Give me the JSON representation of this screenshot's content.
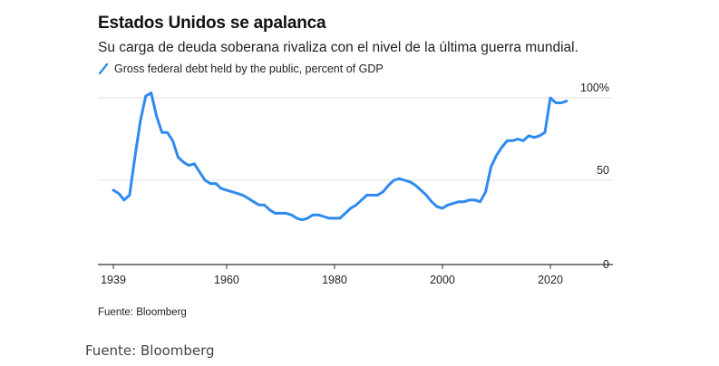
{
  "chart_data": {
    "type": "line",
    "title": "Estados Unidos se apalanca",
    "subtitle": "Su carga de deuda soberana rivaliza con el nivel de la última guerra mundial.",
    "series": [
      {
        "name": "Gross federal debt held by the public, percent of GDP",
        "color": "#2f8af0",
        "x": [
          1939,
          1940,
          1941,
          1942,
          1943,
          1944,
          1945,
          1946,
          1947,
          1948,
          1949,
          1950,
          1951,
          1952,
          1953,
          1954,
          1955,
          1956,
          1957,
          1958,
          1959,
          1960,
          1961,
          1962,
          1963,
          1964,
          1965,
          1966,
          1967,
          1968,
          1969,
          1970,
          1971,
          1972,
          1973,
          1974,
          1975,
          1976,
          1977,
          1978,
          1979,
          1980,
          1981,
          1982,
          1983,
          1984,
          1985,
          1986,
          1987,
          1988,
          1989,
          1990,
          1991,
          1992,
          1993,
          1994,
          1995,
          1996,
          1997,
          1998,
          1999,
          2000,
          2001,
          2002,
          2003,
          2004,
          2005,
          2006,
          2007,
          2008,
          2009,
          2010,
          2011,
          2012,
          2013,
          2014,
          2015,
          2016,
          2017,
          2018,
          2019,
          2020,
          2021,
          2022,
          2023
        ],
        "values": [
          44,
          42,
          38,
          41,
          64,
          86,
          101,
          103,
          89,
          79,
          79,
          74,
          64,
          61,
          59,
          60,
          55,
          50,
          48,
          48,
          45,
          44,
          43,
          42,
          41,
          39,
          37,
          35,
          35,
          32,
          30,
          30,
          30,
          29,
          27,
          26,
          27,
          29,
          29,
          28,
          27,
          27,
          27,
          30,
          33,
          35,
          38,
          41,
          41,
          41,
          43,
          47,
          50,
          51,
          50,
          49,
          47,
          44,
          41,
          37,
          34,
          33,
          35,
          36,
          37,
          37,
          38,
          38,
          37,
          43,
          58,
          65,
          70,
          74,
          74,
          75,
          74,
          77,
          76,
          77,
          79,
          100,
          97,
          97,
          98
        ]
      }
    ],
    "x_ticks": [
      "1939",
      "1960",
      "1980",
      "2000",
      "2020"
    ],
    "y_ticks": [
      "0",
      "50",
      "100%"
    ],
    "xlim": [
      1939,
      2031
    ],
    "ylim": [
      0,
      105
    ],
    "grid": true,
    "legend_position": "top-left"
  },
  "source_inner": "Fuente: Bloomberg",
  "source_caption": "Fuente: Bloomberg"
}
